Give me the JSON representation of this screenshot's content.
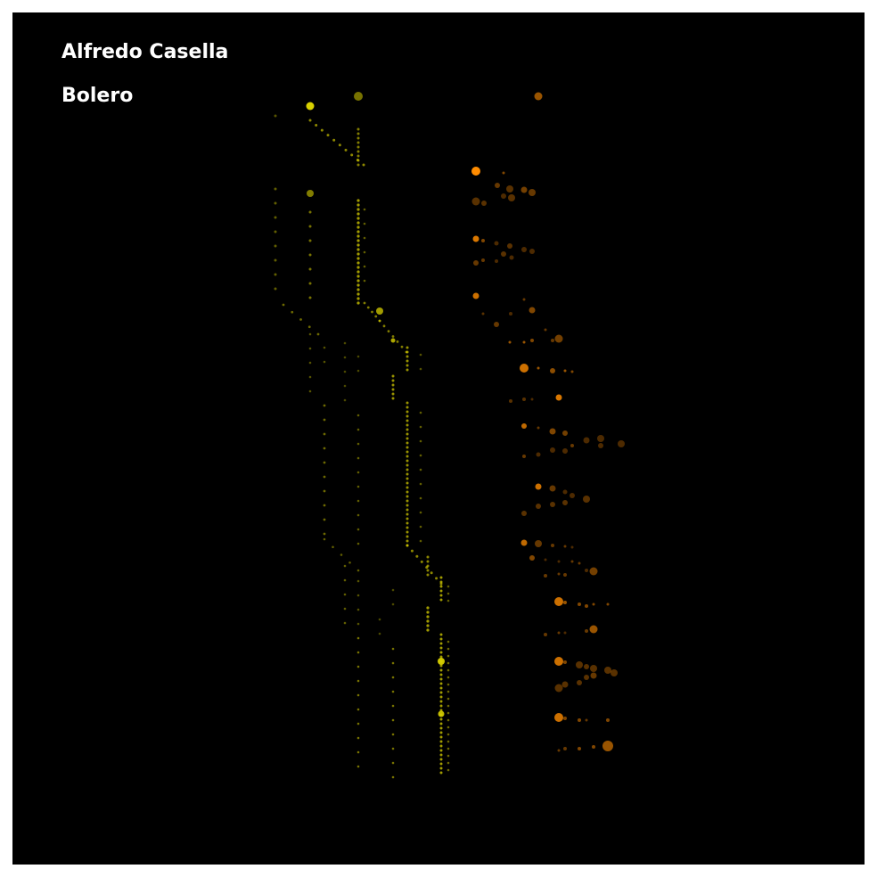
{
  "composer": "Alfredo Casella",
  "work": "Bolero",
  "colors": {
    "background": "#000000",
    "frame": "#ffffff",
    "left_voice": "#d8d000",
    "right_voice": "#ff8c00",
    "text": "#ffffff"
  }
}
